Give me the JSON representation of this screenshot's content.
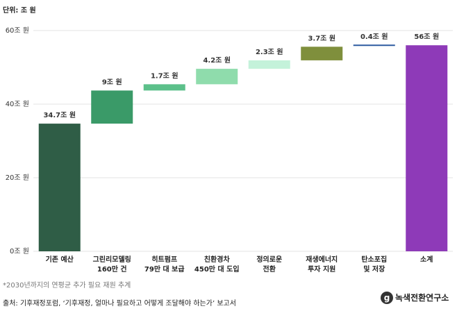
{
  "chart_data": {
    "type": "waterfall",
    "unit_label": "단위: 조 원",
    "categories": [
      "기존 예산",
      "그린리모델링\n160만 건",
      "히트펌프\n79만 대 보급",
      "친환경차\n450만 대 도입",
      "정의로운\n전환",
      "재생에너지\n투자 지원",
      "탄소포집\n및 저장",
      "소계"
    ],
    "values": [
      34.7,
      9,
      1.7,
      4.2,
      2.3,
      3.7,
      0.4,
      56
    ],
    "value_labels": [
      "34.7조 원",
      "9조 원",
      "1.7조 원",
      "4.2조 원",
      "2.3조 원",
      "3.7조 원",
      "0.4조 원",
      "56조 원"
    ],
    "colors": [
      "#2f5d46",
      "#3a9a68",
      "#5cc08a",
      "#8fdcac",
      "#c4f2da",
      "#7f8f3c",
      "#2c5aa0",
      "#8e3ab8"
    ],
    "ylim": [
      0,
      60
    ],
    "yticks": [
      {
        "value": 0,
        "label": "0조 원"
      },
      {
        "value": 20,
        "label": "20조 원"
      },
      {
        "value": 40,
        "label": "40조 원"
      },
      {
        "value": 60,
        "label": "60조 원"
      }
    ],
    "grid": true,
    "note": "*2030년까지의 연평균 추가 필요 재원 추계",
    "source": "출처: 기후재정포럼, ‘기후재정, 얼마나 필요하고 어떻게 조달해야 하는가’ 보고서",
    "logo": "녹색전환연구소"
  }
}
